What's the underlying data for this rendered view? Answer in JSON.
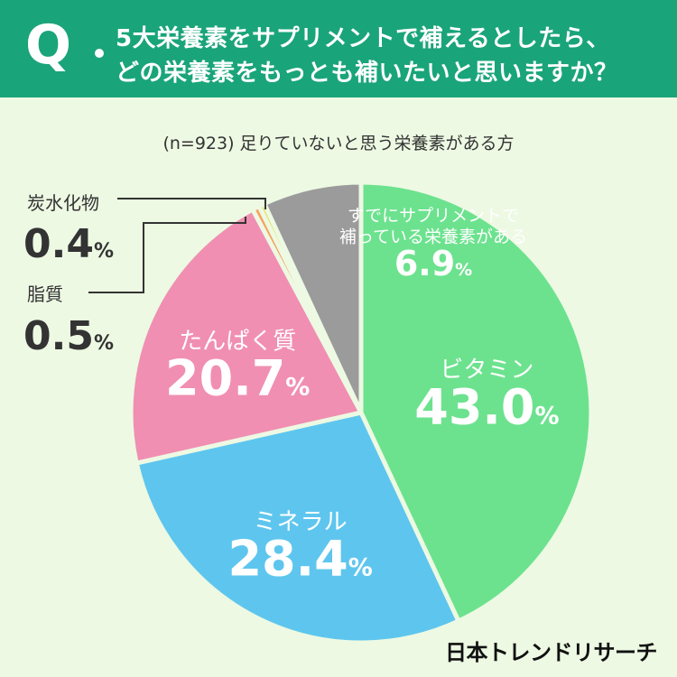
{
  "header": {
    "q_mark": "Q",
    "line1": "5大栄養素をサプリメントで補えるとしたら、",
    "line2": "どの栄養素をもっとも補いたいと思いますか？"
  },
  "subtitle": "(n=923) 足りていないと思う栄養素がある方",
  "brand": "日本トレンドリサーチ",
  "chart_data": {
    "type": "pie",
    "unit": "%",
    "slices": [
      {
        "name": "ビタミン",
        "value": 43.0,
        "label": "43.0",
        "color": "#6ce28e"
      },
      {
        "name": "ミネラル",
        "value": 28.4,
        "label": "28.4",
        "color": "#5ec6ee"
      },
      {
        "name": "たんぱく質",
        "value": 20.7,
        "label": "20.7",
        "color": "#f08fb2"
      },
      {
        "name": "脂質",
        "value": 0.5,
        "label": "0.5",
        "color": "#f4a560"
      },
      {
        "name": "炭水化物",
        "value": 0.4,
        "label": "0.4",
        "color": "#e0e04a"
      },
      {
        "name": "すでにサプリメントで補っている栄養素がある",
        "name_lines": [
          "すでにサプリメントで",
          "補っている栄養素がある"
        ],
        "value": 6.9,
        "label": "6.9",
        "color": "#9b9b9b"
      }
    ]
  }
}
